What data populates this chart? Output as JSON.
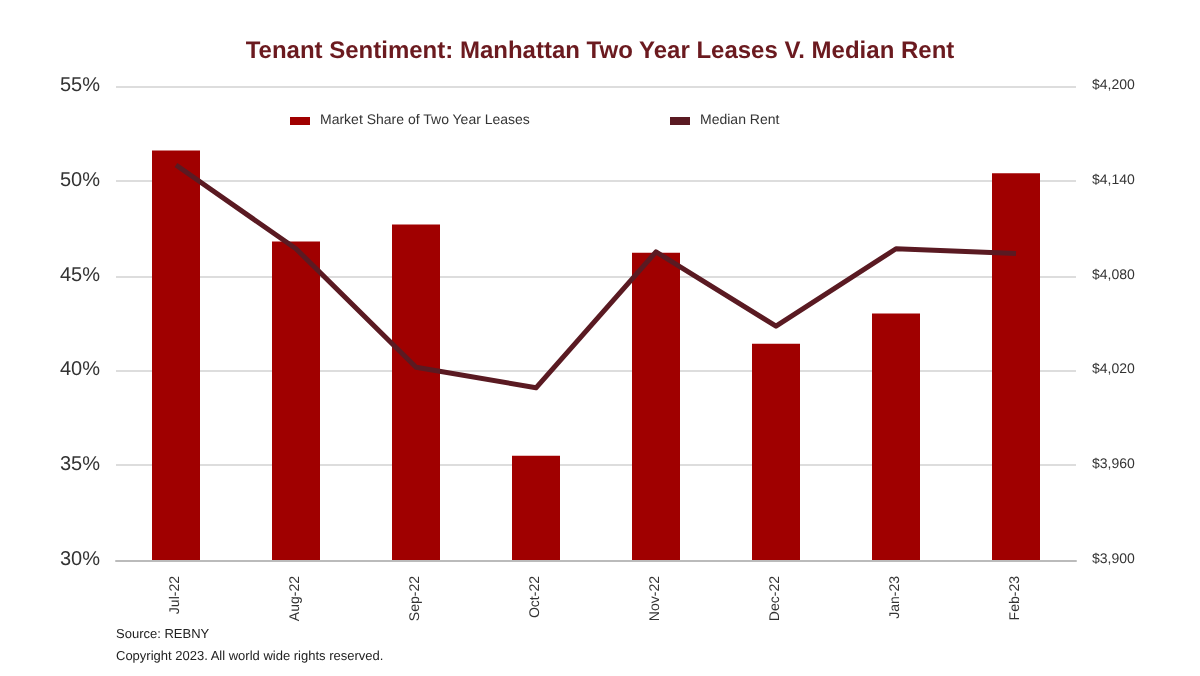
{
  "chart_data": {
    "type": "bar",
    "title": "Tenant Sentiment: Manhattan Two Year Leases V. Median Rent",
    "categories": [
      "Jul-22",
      "Aug-22",
      "Sep-22",
      "Oct-22",
      "Nov-22",
      "Dec-22",
      "Jan-23",
      "Feb-23"
    ],
    "series": [
      {
        "name": "Market Share of Two Year Leases",
        "color": "#a00000",
        "values": [
          51.6,
          46.8,
          47.7,
          35.5,
          46.2,
          41.4,
          43.0,
          50.4
        ]
      },
      {
        "name": "Median Rent",
        "type": "line",
        "axis": "y2",
        "color": "#5a1a22",
        "values": [
          4150,
          4097,
          4022,
          4009,
          4095,
          4048,
          4097,
          4094
        ]
      }
    ],
    "ylim": [
      30,
      55
    ],
    "yticks": [
      {
        "value": 30,
        "label": "30%"
      },
      {
        "value": 35,
        "label": "35%"
      },
      {
        "value": 40,
        "label": "40%"
      },
      {
        "value": 45,
        "label": "45%"
      },
      {
        "value": 50,
        "label": "50%"
      },
      {
        "value": 55,
        "label": "55%"
      }
    ],
    "y2lim": [
      3900,
      4200
    ],
    "y2ticks": [
      {
        "value": 3900,
        "label": "$3,900"
      },
      {
        "value": 3960,
        "label": "$3,960"
      },
      {
        "value": 4020,
        "label": "$4,020"
      },
      {
        "value": 4080,
        "label": "$4,080"
      },
      {
        "value": 4140,
        "label": "$4,140"
      },
      {
        "value": 4200,
        "label": "$4,200"
      }
    ],
    "grid": "y",
    "legend": "top",
    "marker": "none",
    "line_style": "solid",
    "annotations": [
      "Source: REBNY",
      "Copyright 2023. All world wide rights reserved."
    ]
  }
}
